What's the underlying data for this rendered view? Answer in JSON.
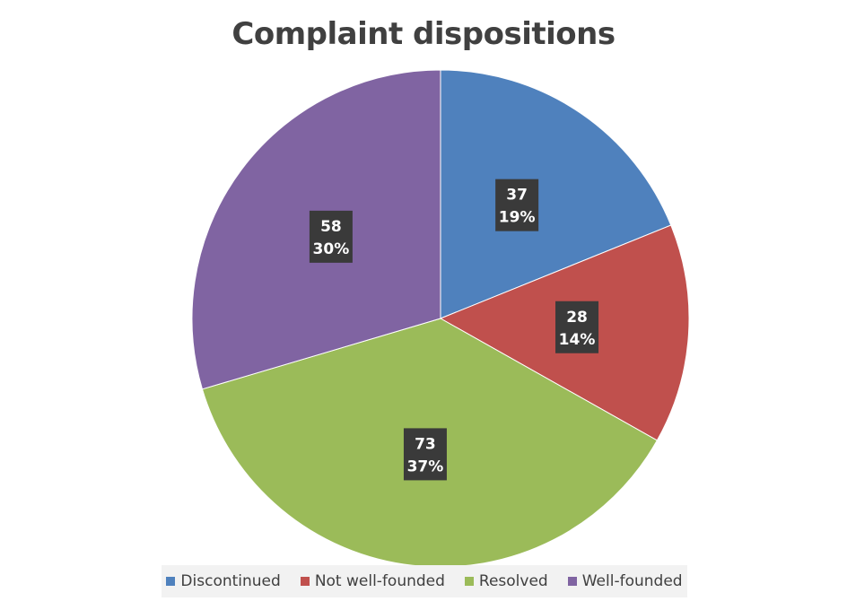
{
  "chart_data": {
    "type": "pie",
    "title": "Complaint dispositions",
    "categories": [
      "Discontinued",
      "Not well-founded",
      "Resolved",
      "Well-founded"
    ],
    "values": [
      37,
      28,
      73,
      58
    ],
    "percent_labels": [
      "19%",
      "14%",
      "37%",
      "30%"
    ],
    "colors": [
      "#4f81bd",
      "#c0504d",
      "#9bbb59",
      "#8064a2"
    ],
    "legend_position": "bottom",
    "start_angle_deg": 0,
    "direction": "clockwise"
  }
}
